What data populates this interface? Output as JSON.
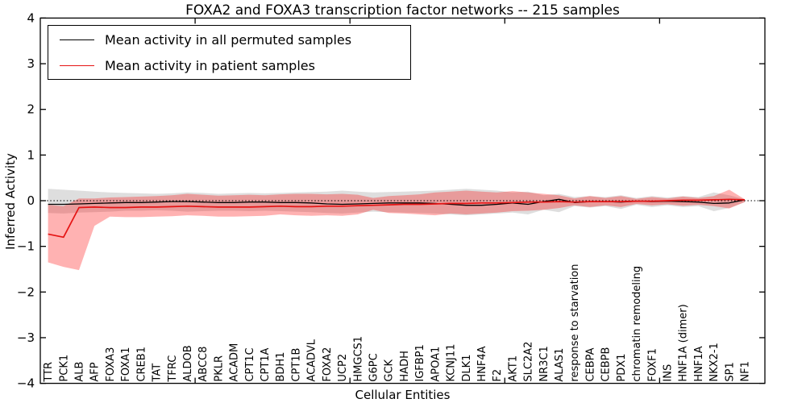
{
  "chart_data": {
    "type": "line",
    "title": "FOXA2 and FOXA3 transcription factor networks -- 215 samples",
    "xlabel": "Cellular Entities",
    "ylabel": "Inferred Activity",
    "ylim": [
      -4,
      4
    ],
    "yticks": [
      4,
      3,
      2,
      1,
      0,
      -1,
      -2,
      -3,
      -4
    ],
    "ytick_labels": [
      "4",
      "3",
      "2",
      "1",
      "0",
      "−1",
      "−2",
      "−3",
      "−4"
    ],
    "x_major_tick_positions": [
      10,
      20,
      30,
      40
    ],
    "zero_line_style": "dotted",
    "legend_position": "upper left",
    "grid": false,
    "categories": [
      "TTR",
      "PCK1",
      "ALB",
      "AFP",
      "FOXA3",
      "FOXA1",
      "CREB1",
      "TAT",
      "TFRC",
      "ALDOB",
      "ABCC8",
      "PKLR",
      "ACADM",
      "CPT1C",
      "CPT1A",
      "BDH1",
      "CPT1B",
      "ACADVL",
      "FOXA2",
      "UCP2",
      "HMGCS1",
      "G6PC",
      "GCK",
      "HADH",
      "IGFBP1",
      "APOA1",
      "KCNJ11",
      "DLK1",
      "HNF4A",
      "F2",
      "AKT1",
      "SLC2A2",
      "NR3C1",
      "ALAS1",
      "response to starvation",
      "CEBPA",
      "CEBPB",
      "PDX1",
      "chromatin remodeling",
      "FOXF1",
      "INS",
      "HNF1A (dimer)",
      "HNF1A",
      "NKX2-1",
      "SP1",
      "NF1"
    ],
    "series": [
      {
        "name": "Mean activity in all permuted samples",
        "color": "#000000",
        "band_color": "rgba(0,0,0,0.13)",
        "values": [
          -0.08,
          -0.08,
          -0.07,
          -0.06,
          -0.05,
          -0.04,
          -0.04,
          -0.03,
          -0.02,
          -0.02,
          -0.03,
          -0.04,
          -0.04,
          -0.03,
          -0.03,
          -0.04,
          -0.04,
          -0.05,
          -0.07,
          -0.08,
          -0.07,
          -0.06,
          -0.05,
          -0.05,
          -0.05,
          -0.06,
          -0.08,
          -0.1,
          -0.1,
          -0.08,
          -0.05,
          -0.08,
          -0.02,
          0.03,
          -0.04,
          -0.02,
          -0.02,
          -0.03,
          -0.01,
          -0.02,
          -0.01,
          -0.02,
          -0.03,
          -0.06,
          -0.05,
          0.02
        ],
        "band_upper": [
          0.26,
          0.24,
          0.22,
          0.2,
          0.18,
          0.17,
          0.16,
          0.15,
          0.16,
          0.18,
          0.17,
          0.15,
          0.16,
          0.17,
          0.16,
          0.17,
          0.18,
          0.19,
          0.2,
          0.22,
          0.2,
          0.18,
          0.19,
          0.2,
          0.21,
          0.22,
          0.24,
          0.26,
          0.24,
          0.22,
          0.18,
          0.2,
          0.12,
          0.15,
          0.08,
          0.1,
          0.08,
          0.12,
          0.06,
          0.1,
          0.07,
          0.1,
          0.08,
          0.18,
          0.12,
          0.03
        ],
        "band_lower": [
          -0.27,
          -0.28,
          -0.26,
          -0.25,
          -0.24,
          -0.22,
          -0.22,
          -0.21,
          -0.22,
          -0.24,
          -0.23,
          -0.22,
          -0.22,
          -0.23,
          -0.22,
          -0.23,
          -0.24,
          -0.25,
          -0.27,
          -0.28,
          -0.26,
          -0.24,
          -0.25,
          -0.26,
          -0.27,
          -0.28,
          -0.3,
          -0.32,
          -0.3,
          -0.28,
          -0.26,
          -0.3,
          -0.2,
          -0.25,
          -0.12,
          -0.15,
          -0.12,
          -0.18,
          -0.09,
          -0.14,
          -0.1,
          -0.14,
          -0.12,
          -0.23,
          -0.16,
          -0.03
        ]
      },
      {
        "name": "Mean activity in patient samples",
        "color": "#e51414",
        "band_color": "rgba(255,0,0,0.30)",
        "values": [
          -0.73,
          -0.8,
          -0.15,
          -0.14,
          -0.15,
          -0.15,
          -0.14,
          -0.14,
          -0.13,
          -0.12,
          -0.13,
          -0.14,
          -0.14,
          -0.14,
          -0.13,
          -0.12,
          -0.13,
          -0.13,
          -0.12,
          -0.12,
          -0.11,
          -0.1,
          -0.09,
          -0.08,
          -0.08,
          -0.07,
          -0.06,
          -0.06,
          -0.05,
          -0.05,
          -0.04,
          -0.03,
          -0.03,
          -0.02,
          -0.03,
          -0.02,
          -0.02,
          -0.02,
          -0.01,
          -0.01,
          0.0,
          0.01,
          0.01,
          0.02,
          0.03,
          0.02
        ],
        "band_upper": [
          -0.09,
          -0.12,
          0.05,
          0.05,
          0.07,
          0.08,
          0.09,
          0.1,
          0.12,
          0.15,
          0.13,
          0.11,
          0.12,
          0.13,
          0.12,
          0.14,
          0.15,
          0.15,
          0.14,
          0.15,
          0.13,
          0.06,
          0.1,
          0.12,
          0.14,
          0.18,
          0.2,
          0.22,
          0.2,
          0.18,
          0.21,
          0.18,
          0.15,
          0.12,
          0.05,
          0.1,
          0.06,
          0.1,
          0.04,
          0.08,
          0.05,
          0.09,
          0.06,
          0.1,
          0.24,
          0.03
        ],
        "band_lower": [
          -1.35,
          -1.45,
          -1.52,
          -0.55,
          -0.35,
          -0.36,
          -0.36,
          -0.35,
          -0.34,
          -0.32,
          -0.33,
          -0.35,
          -0.35,
          -0.34,
          -0.33,
          -0.3,
          -0.32,
          -0.33,
          -0.32,
          -0.33,
          -0.3,
          -0.2,
          -0.27,
          -0.28,
          -0.3,
          -0.32,
          -0.28,
          -0.3,
          -0.28,
          -0.26,
          -0.23,
          -0.22,
          -0.2,
          -0.16,
          -0.1,
          -0.14,
          -0.1,
          -0.14,
          -0.07,
          -0.1,
          -0.08,
          -0.11,
          -0.09,
          -0.12,
          -0.17,
          -0.03
        ]
      }
    ]
  }
}
